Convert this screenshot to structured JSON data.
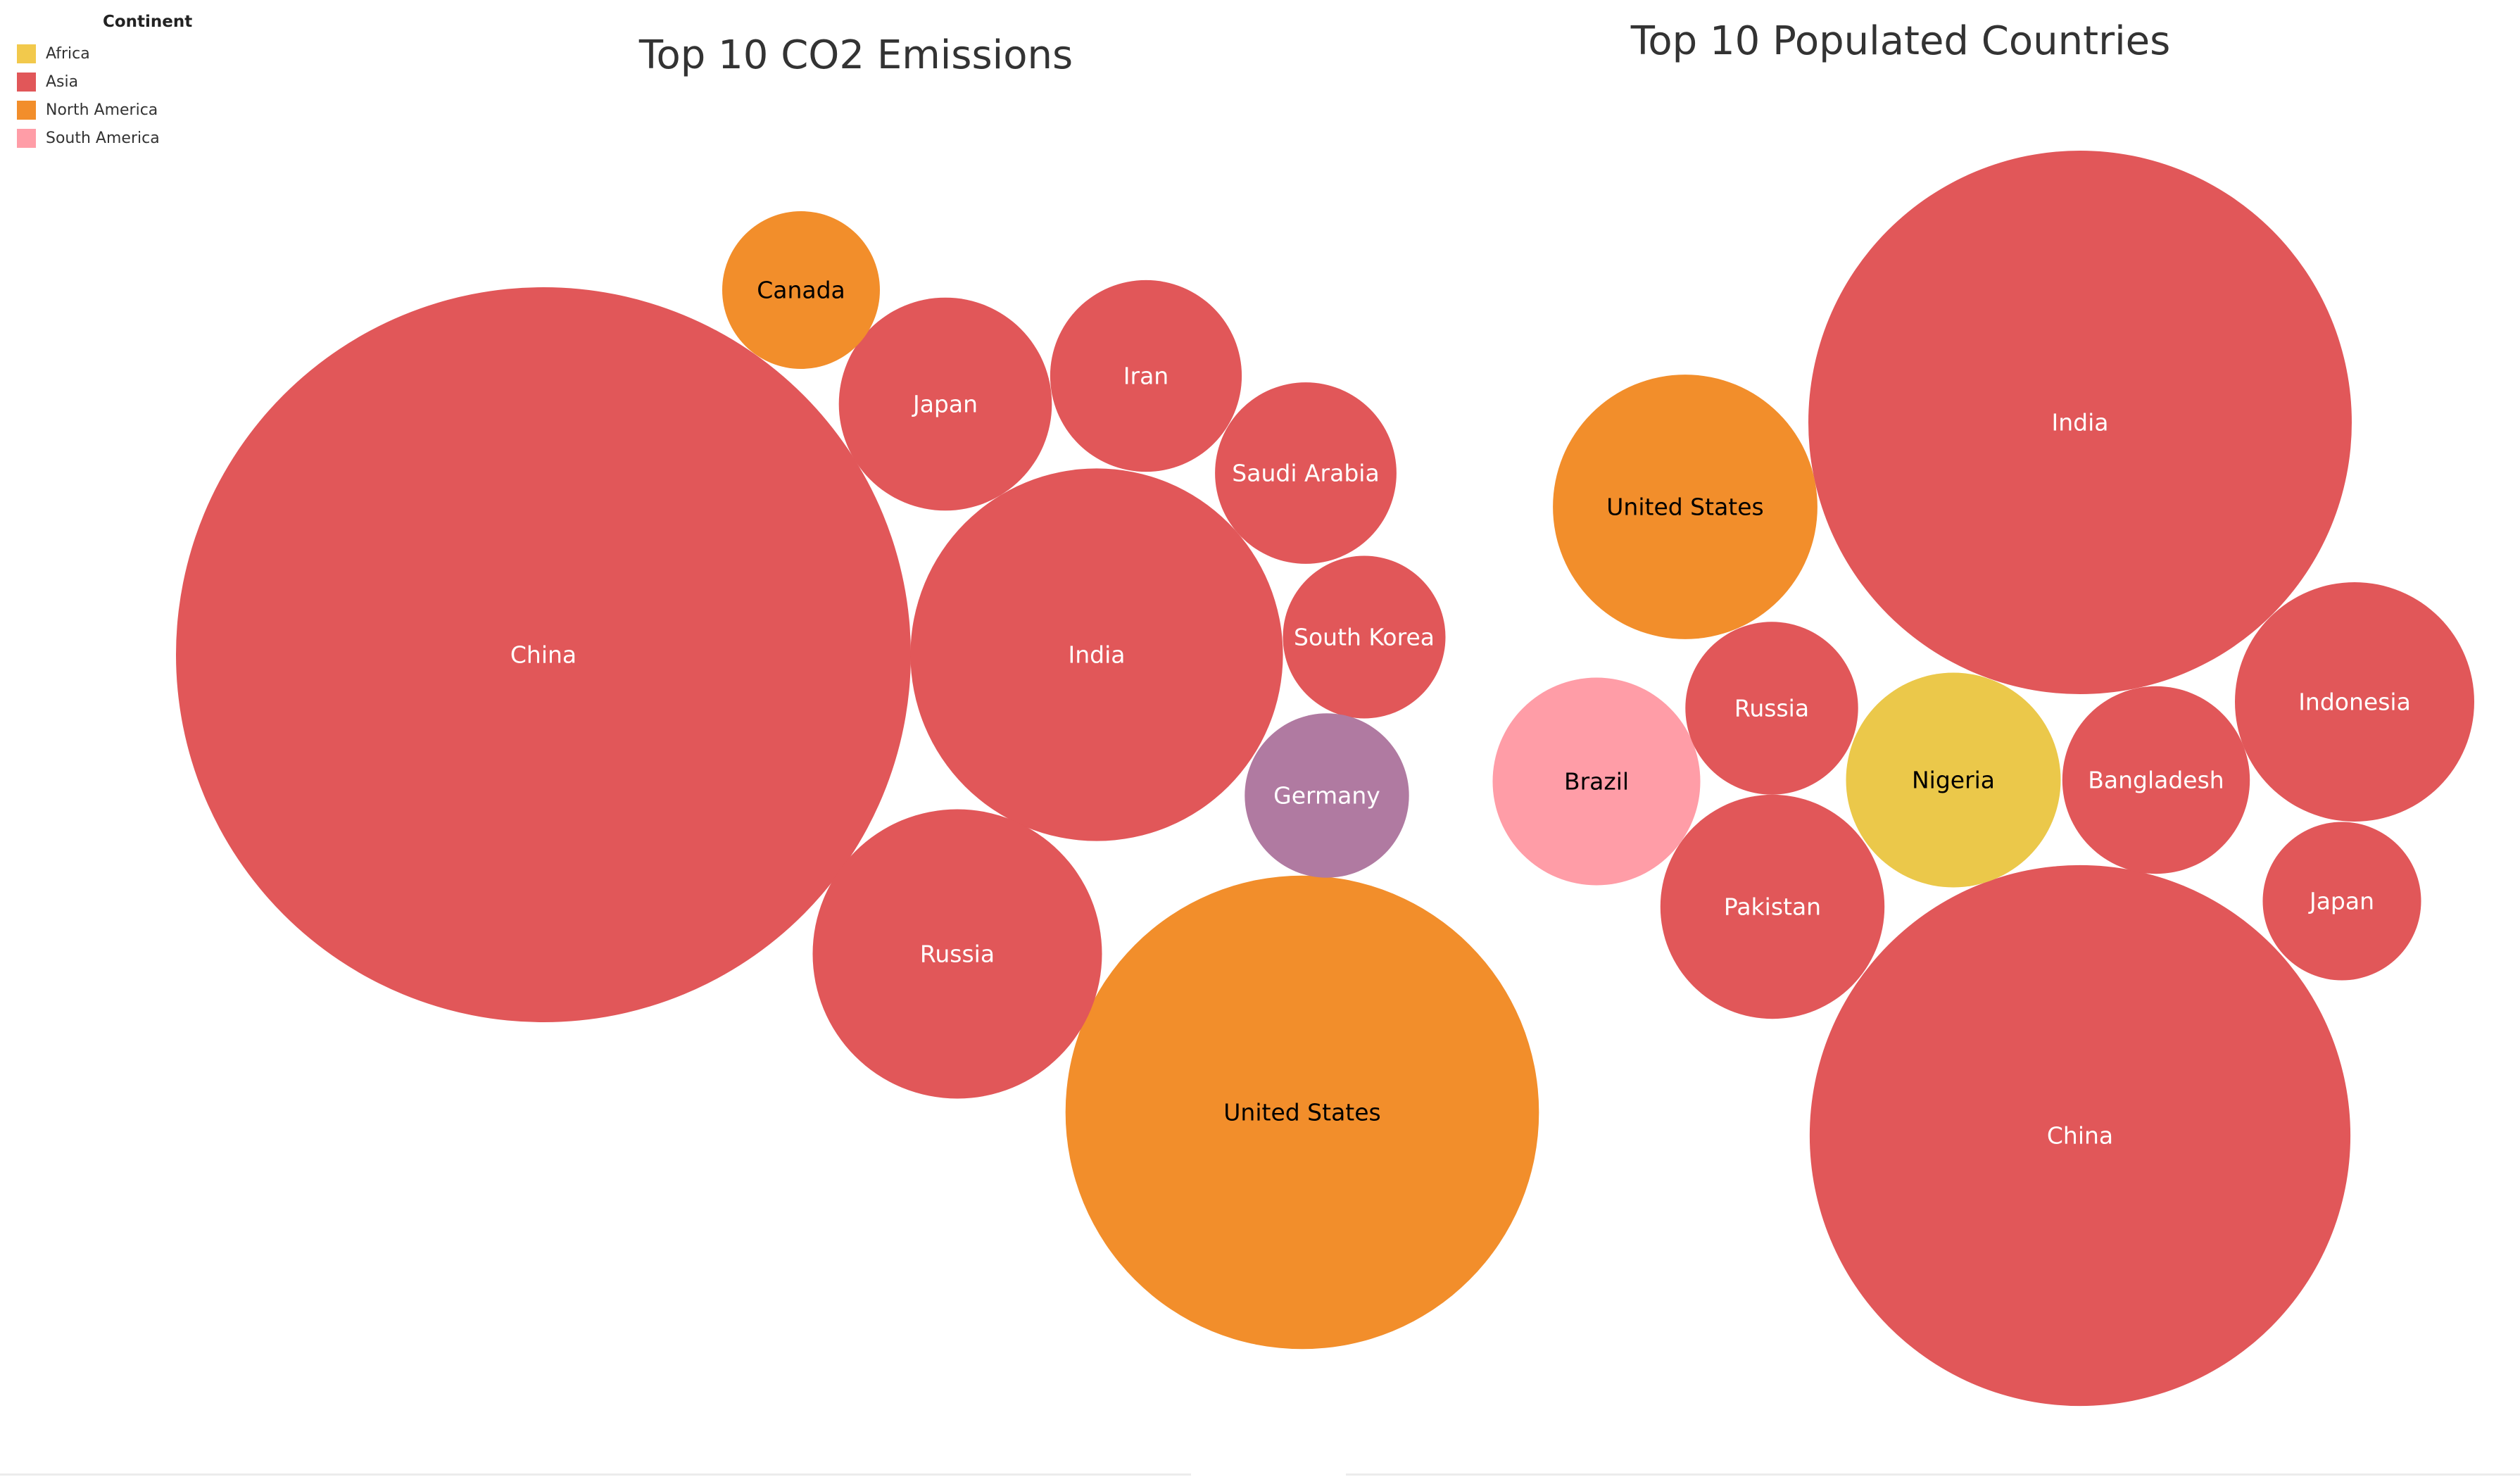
{
  "legend": {
    "title": "Continent",
    "items": [
      {
        "label": "Africa",
        "color": "#f2c94c"
      },
      {
        "label": "Asia",
        "color": "#e15759"
      },
      {
        "label": "North America",
        "color": "#f28e2b"
      },
      {
        "label": "South America",
        "color": "#ff9da7"
      }
    ]
  },
  "chart_data": [
    {
      "type": "bubble",
      "title": "Top 10 CO2 Emissions",
      "series": [
        {
          "label": "China",
          "continent": "Asia",
          "value": 100,
          "color": "#e15759",
          "label_color": "#ffffff"
        },
        {
          "label": "United States",
          "continent": "North America",
          "value": 41.5,
          "color": "#f28e2b",
          "label_color": "#000000"
        },
        {
          "label": "India",
          "continent": "Asia",
          "value": 25.7,
          "color": "#e15759",
          "label_color": "#ffffff"
        },
        {
          "label": "Russia",
          "continent": "Asia",
          "value": 15.5,
          "color": "#e15759",
          "label_color": "#ffffff"
        },
        {
          "label": "Japan",
          "continent": "Asia",
          "value": 8.4,
          "color": "#e15759",
          "label_color": "#ffffff"
        },
        {
          "label": "Iran",
          "continent": "Asia",
          "value": 6.8,
          "color": "#e15759",
          "label_color": "#ffffff"
        },
        {
          "label": "Saudi Arabia",
          "continent": "Asia",
          "value": 6.1,
          "color": "#e15759",
          "label_color": "#ffffff"
        },
        {
          "label": "South Korea",
          "continent": "Asia",
          "value": 4.9,
          "color": "#e15759",
          "label_color": "#ffffff"
        },
        {
          "label": "Germany",
          "continent": "",
          "value": 5.0,
          "color": "#b07aa1",
          "label_color": "#ffffff"
        },
        {
          "label": "Canada",
          "continent": "North America",
          "value": 4.6,
          "color": "#f28e2b",
          "label_color": "#000000"
        }
      ]
    },
    {
      "type": "bubble",
      "title": "Top 10 Populated Countries",
      "series": [
        {
          "label": "India",
          "continent": "Asia",
          "value": 100,
          "color": "#e15759",
          "label_color": "#ffffff"
        },
        {
          "label": "China",
          "continent": "Asia",
          "value": 99,
          "color": "#e15759",
          "label_color": "#ffffff"
        },
        {
          "label": "United States",
          "continent": "North America",
          "value": 23.7,
          "color": "#f28e2b",
          "label_color": "#000000"
        },
        {
          "label": "Indonesia",
          "continent": "Asia",
          "value": 19.4,
          "color": "#e15759",
          "label_color": "#ffffff"
        },
        {
          "label": "Pakistan",
          "continent": "Asia",
          "value": 17.0,
          "color": "#e15759",
          "label_color": "#ffffff"
        },
        {
          "label": "Nigeria",
          "continent": "Africa",
          "value": 15.6,
          "color": "#ebc84a",
          "label_color": "#000000"
        },
        {
          "label": "Brazil",
          "continent": "South America",
          "value": 14.6,
          "color": "#ff9da7",
          "label_color": "#000000"
        },
        {
          "label": "Bangladesh",
          "continent": "Asia",
          "value": 11.9,
          "color": "#e15759",
          "label_color": "#ffffff"
        },
        {
          "label": "Russia",
          "continent": "Asia",
          "value": 10.1,
          "color": "#e15759",
          "label_color": "#ffffff"
        },
        {
          "label": "Japan",
          "continent": "Asia",
          "value": 8.5,
          "color": "#e15759",
          "label_color": "#ffffff"
        }
      ]
    }
  ]
}
